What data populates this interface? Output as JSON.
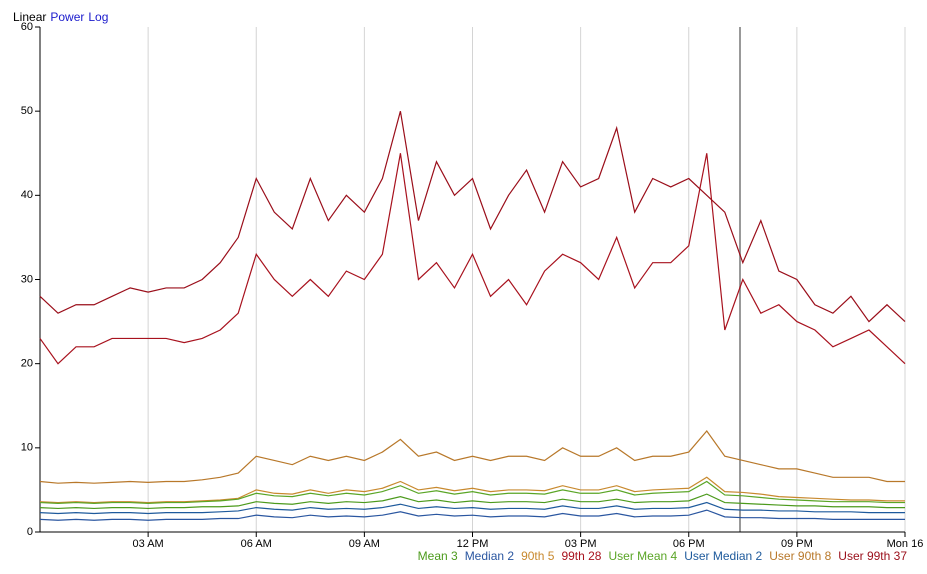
{
  "scale_options": [
    "Linear",
    "Power",
    "Log"
  ],
  "chart_data": {
    "type": "line",
    "xlim": [
      0,
      24
    ],
    "xticks": [
      {
        "value": 3,
        "label": "03 AM"
      },
      {
        "value": 6,
        "label": "06 AM"
      },
      {
        "value": 9,
        "label": "09 AM"
      },
      {
        "value": 12,
        "label": "12 PM"
      },
      {
        "value": 15,
        "label": "03 PM"
      },
      {
        "value": 18,
        "label": "06 PM"
      },
      {
        "value": 21,
        "label": "09 PM"
      },
      {
        "value": 24,
        "label": "Mon 16"
      }
    ],
    "ylim": [
      0,
      60
    ],
    "yticks": [
      0,
      10,
      20,
      30,
      40,
      50,
      60
    ],
    "grid": true,
    "legend": "bottom-right",
    "x": [
      0,
      0.5,
      1,
      1.5,
      2,
      2.5,
      3,
      3.5,
      4,
      4.5,
      5,
      5.5,
      6,
      6.5,
      7,
      7.5,
      8,
      8.5,
      9,
      9.5,
      10,
      10.5,
      11,
      11.5,
      12,
      12.5,
      13,
      13.5,
      14,
      14.5,
      15,
      15.5,
      16,
      16.5,
      17,
      17.5,
      18,
      18.5,
      19,
      19.5,
      20,
      20.5,
      21,
      21.5,
      22,
      22.5,
      23,
      23.5,
      24
    ],
    "series": [
      {
        "name": "Mean 3",
        "color": "#4c9a1c",
        "values": [
          2.9,
          2.8,
          2.9,
          2.8,
          2.9,
          2.9,
          2.8,
          2.9,
          2.9,
          3,
          3,
          3.1,
          3.6,
          3.4,
          3.3,
          3.6,
          3.4,
          3.6,
          3.5,
          3.7,
          4.2,
          3.6,
          3.8,
          3.5,
          3.7,
          3.5,
          3.6,
          3.6,
          3.5,
          3.9,
          3.6,
          3.6,
          3.9,
          3.5,
          3.6,
          3.6,
          3.7,
          4.5,
          3.5,
          3.4,
          3.3,
          3.2,
          3.1,
          3.1,
          3,
          3,
          3,
          2.9,
          2.9
        ]
      },
      {
        "name": "Median 2",
        "color": "#2a56a0",
        "values": [
          1.5,
          1.4,
          1.5,
          1.4,
          1.5,
          1.5,
          1.4,
          1.5,
          1.5,
          1.5,
          1.6,
          1.6,
          2,
          1.8,
          1.7,
          2,
          1.8,
          1.9,
          1.8,
          2,
          2.4,
          1.9,
          2.1,
          1.9,
          2,
          1.8,
          1.9,
          1.9,
          1.8,
          2.2,
          1.9,
          1.9,
          2.2,
          1.8,
          1.9,
          1.9,
          2,
          2.6,
          1.8,
          1.7,
          1.7,
          1.6,
          1.6,
          1.6,
          1.5,
          1.5,
          1.5,
          1.5,
          1.5
        ]
      },
      {
        "name": "90th 5",
        "color": "#c8892e",
        "values": [
          3.6,
          3.5,
          3.6,
          3.5,
          3.6,
          3.6,
          3.5,
          3.6,
          3.6,
          3.7,
          3.8,
          4,
          5,
          4.6,
          4.5,
          5,
          4.6,
          5,
          4.8,
          5.2,
          6,
          5,
          5.3,
          4.9,
          5.2,
          4.8,
          5,
          5,
          4.9,
          5.5,
          5,
          5,
          5.5,
          4.8,
          5,
          5.1,
          5.2,
          6.5,
          4.8,
          4.7,
          4.5,
          4.2,
          4.1,
          4,
          3.9,
          3.8,
          3.8,
          3.7,
          3.7
        ]
      },
      {
        "name": "99th 28",
        "color": "#a8121e",
        "values": [
          23,
          20,
          22,
          22,
          23,
          23,
          23,
          23,
          22.5,
          23,
          24,
          26,
          33,
          30,
          28,
          30,
          28,
          31,
          30,
          33,
          45,
          30,
          32,
          29,
          33,
          28,
          30,
          27,
          31,
          33,
          32,
          30,
          35,
          29,
          32,
          32,
          34,
          45,
          24,
          30,
          26,
          27,
          25,
          24,
          22,
          23,
          24,
          22,
          20
        ]
      },
      {
        "name": "User Mean 4",
        "color": "#5aa526",
        "values": [
          3.5,
          3.4,
          3.5,
          3.4,
          3.5,
          3.5,
          3.4,
          3.5,
          3.5,
          3.6,
          3.7,
          3.9,
          4.6,
          4.3,
          4.2,
          4.6,
          4.3,
          4.6,
          4.4,
          4.8,
          5.5,
          4.6,
          4.9,
          4.5,
          4.8,
          4.4,
          4.6,
          4.6,
          4.5,
          5,
          4.6,
          4.6,
          5,
          4.4,
          4.6,
          4.7,
          4.8,
          6,
          4.4,
          4.3,
          4.1,
          3.9,
          3.8,
          3.7,
          3.6,
          3.6,
          3.6,
          3.5,
          3.5
        ]
      },
      {
        "name": "User Median 2",
        "color": "#1e5a9c",
        "values": [
          2.3,
          2.2,
          2.3,
          2.2,
          2.3,
          2.3,
          2.2,
          2.3,
          2.3,
          2.3,
          2.4,
          2.5,
          2.9,
          2.7,
          2.6,
          2.9,
          2.7,
          2.8,
          2.7,
          2.9,
          3.3,
          2.8,
          3,
          2.8,
          2.9,
          2.7,
          2.8,
          2.8,
          2.7,
          3.1,
          2.8,
          2.8,
          3.1,
          2.7,
          2.8,
          2.8,
          2.9,
          3.5,
          2.7,
          2.6,
          2.6,
          2.5,
          2.5,
          2.4,
          2.4,
          2.4,
          2.3,
          2.3,
          2.3
        ]
      },
      {
        "name": "User 90th 8",
        "color": "#b8782a",
        "values": [
          6,
          5.8,
          5.9,
          5.8,
          5.9,
          6,
          5.9,
          6,
          6,
          6.2,
          6.5,
          7,
          9,
          8.5,
          8,
          9,
          8.5,
          9,
          8.5,
          9.5,
          11,
          9,
          9.5,
          8.5,
          9,
          8.5,
          9,
          9,
          8.5,
          10,
          9,
          9,
          10,
          8.5,
          9,
          9,
          9.5,
          12,
          9,
          8.5,
          8,
          7.5,
          7.5,
          7,
          6.5,
          6.5,
          6.5,
          6,
          6
        ]
      },
      {
        "name": "User 99th 37",
        "color": "#9a0e1a",
        "values": [
          28,
          26,
          27,
          27,
          28,
          29,
          28.5,
          29,
          29,
          30,
          32,
          35,
          42,
          38,
          36,
          42,
          37,
          40,
          38,
          42,
          50,
          37,
          44,
          40,
          42,
          36,
          40,
          43,
          38,
          44,
          41,
          42,
          48,
          38,
          42,
          41,
          42,
          40,
          38,
          32,
          37,
          31,
          30,
          27,
          26,
          28,
          25,
          27,
          25
        ]
      }
    ]
  }
}
